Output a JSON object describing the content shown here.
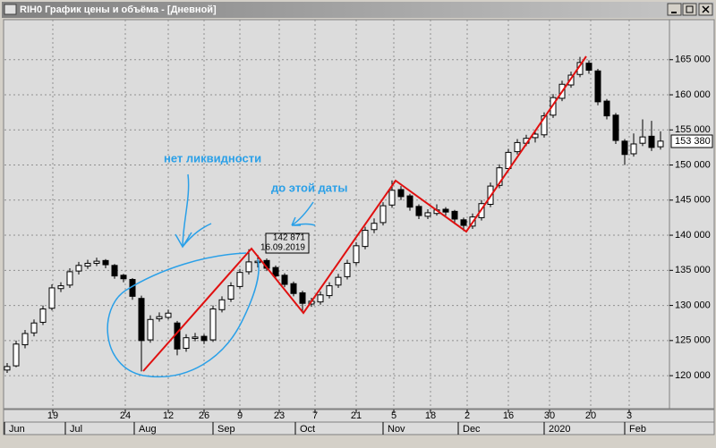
{
  "window": {
    "title": "RIH0 График цены и объёма - [Дневной]"
  },
  "chart_data": {
    "type": "candlestick",
    "candles": [
      [
        120800,
        121800,
        120400,
        121300
      ],
      [
        121400,
        125000,
        121200,
        124500
      ],
      [
        124400,
        126500,
        123900,
        126000
      ],
      [
        126100,
        128000,
        125600,
        127500
      ],
      [
        127600,
        130000,
        127200,
        129500
      ],
      [
        129600,
        133000,
        129300,
        132500
      ],
      [
        132400,
        133300,
        131900,
        132800
      ],
      [
        132900,
        135300,
        132500,
        134800
      ],
      [
        134900,
        136200,
        134400,
        135700
      ],
      [
        135600,
        136500,
        135200,
        136000
      ],
      [
        136000,
        136800,
        135600,
        136300
      ],
      [
        136400,
        136600,
        135300,
        135800
      ],
      [
        135700,
        135900,
        133800,
        134200
      ],
      [
        134300,
        134500,
        133300,
        133800
      ],
      [
        133700,
        133900,
        130800,
        131300
      ],
      [
        131000,
        131400,
        120600,
        125000
      ],
      [
        125100,
        128600,
        124700,
        128000
      ],
      [
        128100,
        129000,
        127700,
        128400
      ],
      [
        128300,
        129400,
        128000,
        128900
      ],
      [
        127500,
        127800,
        122900,
        123800
      ],
      [
        123900,
        125900,
        123400,
        125400
      ],
      [
        125300,
        126100,
        124900,
        125500
      ],
      [
        125600,
        125900,
        124500,
        125000
      ],
      [
        125100,
        130000,
        124800,
        129500
      ],
      [
        129400,
        131300,
        129000,
        130800
      ],
      [
        130900,
        133300,
        130500,
        132800
      ],
      [
        132700,
        135200,
        132400,
        134700
      ],
      [
        134800,
        138000,
        134400,
        136200
      ],
      [
        136100,
        137200,
        135400,
        136300
      ],
      [
        136400,
        136700,
        134900,
        135300
      ],
      [
        135400,
        135700,
        133800,
        134200
      ],
      [
        134300,
        134600,
        132600,
        133000
      ],
      [
        133100,
        133400,
        131300,
        131700
      ],
      [
        131800,
        132100,
        129200,
        130300
      ],
      [
        130200,
        131100,
        129800,
        130600
      ],
      [
        130500,
        132000,
        130100,
        131500
      ],
      [
        131400,
        133300,
        131000,
        132800
      ],
      [
        132900,
        134500,
        132500,
        134000
      ],
      [
        134100,
        136500,
        133700,
        136000
      ],
      [
        136100,
        139000,
        135700,
        138500
      ],
      [
        138400,
        141200,
        138000,
        140700
      ],
      [
        140800,
        142400,
        140300,
        141700
      ],
      [
        141800,
        144700,
        141400,
        144200
      ],
      [
        144300,
        147800,
        143900,
        146400
      ],
      [
        146500,
        147000,
        145000,
        145500
      ],
      [
        145600,
        145900,
        143500,
        144000
      ],
      [
        144100,
        144400,
        142300,
        142800
      ],
      [
        142700,
        143700,
        142300,
        143200
      ],
      [
        143100,
        144400,
        142800,
        143600
      ],
      [
        143700,
        144000,
        142800,
        143300
      ],
      [
        143400,
        143600,
        141800,
        142300
      ],
      [
        142200,
        142500,
        140600,
        141400
      ],
      [
        141300,
        143100,
        140900,
        142600
      ],
      [
        142500,
        145000,
        142100,
        144500
      ],
      [
        144400,
        147500,
        144000,
        147000
      ],
      [
        147100,
        150100,
        146700,
        149600
      ],
      [
        149500,
        152300,
        149100,
        151800
      ],
      [
        151900,
        153700,
        151500,
        153200
      ],
      [
        153100,
        154300,
        152700,
        153800
      ],
      [
        153900,
        154900,
        153200,
        154400
      ],
      [
        154300,
        157500,
        153900,
        157000
      ],
      [
        157100,
        160100,
        156700,
        159600
      ],
      [
        159500,
        162000,
        159100,
        161500
      ],
      [
        161400,
        163300,
        161000,
        162800
      ],
      [
        162900,
        165400,
        162500,
        164600
      ],
      [
        164500,
        164900,
        163000,
        163500
      ],
      [
        163400,
        163700,
        158500,
        159000
      ],
      [
        159100,
        159400,
        156500,
        157000
      ],
      [
        157100,
        157400,
        153000,
        153500
      ],
      [
        153400,
        153700,
        150000,
        151500
      ],
      [
        151600,
        154500,
        151200,
        153000
      ],
      [
        153100,
        156500,
        152700,
        154000
      ],
      [
        154100,
        156300,
        152000,
        152500
      ],
      [
        152600,
        154800,
        152200,
        153400
      ]
    ],
    "up_color": "#ffffff",
    "down_color": "#000000",
    "xlim": [
      -0.3,
      74
    ],
    "xticks": [
      {
        "value": 5.1,
        "label": "19"
      },
      {
        "value": 13.2,
        "label": "24"
      },
      {
        "value": 18,
        "label": "12"
      },
      {
        "value": 22,
        "label": "26"
      },
      {
        "value": 26,
        "label": "9"
      },
      {
        "value": 30.4,
        "label": "23"
      },
      {
        "value": 34.4,
        "label": "7"
      },
      {
        "value": 39,
        "label": "21"
      },
      {
        "value": 43.2,
        "label": "5"
      },
      {
        "value": 47.3,
        "label": "18"
      },
      {
        "value": 51.4,
        "label": "2"
      },
      {
        "value": 56,
        "label": "16"
      },
      {
        "value": 60.6,
        "label": "30"
      },
      {
        "value": 65.2,
        "label": "20"
      },
      {
        "value": 69.5,
        "label": "3"
      }
    ],
    "month_ticks": [
      {
        "value": -0.3,
        "label": "Jun"
      },
      {
        "value": 6.5,
        "label": "Jul"
      },
      {
        "value": 14.2,
        "label": "Aug"
      },
      {
        "value": 23,
        "label": "Sep"
      },
      {
        "value": 32.2,
        "label": "Oct"
      },
      {
        "value": 42,
        "label": "Nov"
      },
      {
        "value": 50.4,
        "label": "Dec"
      },
      {
        "value": 60,
        "label": "2020"
      },
      {
        "value": 69,
        "label": "Feb"
      }
    ],
    "ylim": [
      115300,
      170700
    ],
    "yticks": [
      {
        "value": 120000,
        "label": "120 000"
      },
      {
        "value": 125000,
        "label": "125 000"
      },
      {
        "value": 130000,
        "label": "130 000"
      },
      {
        "value": 135000,
        "label": "135 000"
      },
      {
        "value": 140000,
        "label": "140 000"
      },
      {
        "value": 145000,
        "label": "145 000"
      },
      {
        "value": 150000,
        "label": "150 000"
      },
      {
        "value": 155000,
        "label": "155 000"
      },
      {
        "value": 160000,
        "label": "160 000"
      },
      {
        "value": 165000,
        "label": "165 000"
      }
    ],
    "grid": true,
    "last_price": {
      "value": 153380,
      "label": "153 380"
    },
    "annotations": [
      "нет ликвидности",
      "до этой даты"
    ],
    "cursor_label": [
      "142 871",
      "16.09.2019"
    ]
  }
}
